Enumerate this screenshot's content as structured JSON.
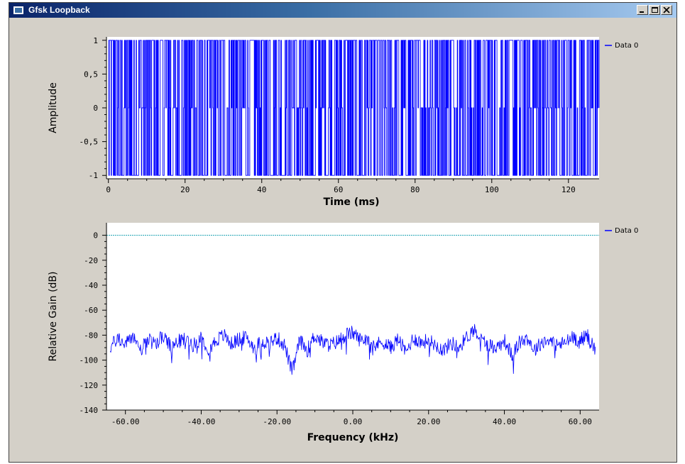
{
  "window": {
    "title": "Gfsk Loopback",
    "icon": "app-window-icon",
    "controls": [
      "minimize-icon",
      "maximize-icon",
      "close-icon"
    ]
  },
  "colors": {
    "trace": "#0000ff",
    "reference_line": "#1aa0b0",
    "plot_background": "#ffffff",
    "window_background": "#d4d0c8"
  },
  "chart_data": [
    {
      "type": "line",
      "style": "dense binary bit stream",
      "xlabel": "Time (ms)",
      "ylabel": "Amplitude",
      "xlim": [
        -0.5,
        128
      ],
      "ylim": [
        -1.05,
        1.05
      ],
      "xticks": [
        0,
        20,
        40,
        60,
        80,
        100,
        120
      ],
      "xtick_labels": [
        "0",
        "20",
        "40",
        "60",
        "80",
        "100",
        "120"
      ],
      "yticks": [
        -1,
        -0.5,
        0,
        0.5,
        1
      ],
      "ytick_labels": [
        "-1",
        "-0,5",
        "0",
        "0,5",
        "1"
      ],
      "legend": {
        "position": "top-right",
        "entries": [
          "Data 0"
        ]
      },
      "series": [
        {
          "name": "Data 0",
          "levels": [
            -1,
            0,
            1
          ],
          "x_range": [
            0,
            128
          ]
        }
      ]
    },
    {
      "type": "line",
      "xlabel": "Frequency (kHz)",
      "ylabel": "Relative Gain (dB)",
      "xlim": [
        -65,
        65
      ],
      "ylim": [
        -140,
        10
      ],
      "xticks": [
        -60,
        -40,
        -20,
        0,
        20,
        40,
        60
      ],
      "xtick_labels": [
        "-60.00",
        "-40.00",
        "-20.00",
        "0.00",
        "20.00",
        "40.00",
        "60.00"
      ],
      "yticks": [
        0,
        -20,
        -40,
        -60,
        -80,
        -100,
        -120,
        -140
      ],
      "ytick_labels": [
        "0",
        "-20",
        "-40",
        "-60",
        "-80",
        "-100",
        "-120",
        "-140"
      ],
      "legend": {
        "position": "top-right",
        "entries": [
          "Data 0"
        ]
      },
      "reference_line_db": 0,
      "series": [
        {
          "name": "Data 0",
          "x": [
            -64,
            -62,
            -60,
            -58,
            -56,
            -54,
            -52,
            -50,
            -48,
            -46,
            -44,
            -42,
            -40,
            -38,
            -36,
            -34,
            -32,
            -30,
            -28,
            -26,
            -24,
            -22,
            -20,
            -18,
            -16,
            -14,
            -12,
            -10,
            -8,
            -6,
            -4,
            -2,
            0,
            2,
            4,
            6,
            8,
            10,
            12,
            14,
            16,
            18,
            20,
            22,
            24,
            26,
            28,
            30,
            32,
            34,
            36,
            38,
            40,
            42,
            44,
            46,
            48,
            50,
            52,
            54,
            56,
            58,
            60,
            62,
            64
          ],
          "values": [
            -90,
            -82,
            -88,
            -80,
            -92,
            -84,
            -86,
            -81,
            -90,
            -85,
            -83,
            -88,
            -82,
            -91,
            -84,
            -80,
            -87,
            -83,
            -82,
            -90,
            -85,
            -86,
            -82,
            -88,
            -110,
            -84,
            -92,
            -80,
            -86,
            -88,
            -85,
            -80,
            -78,
            -84,
            -82,
            -88,
            -85,
            -90,
            -83,
            -94,
            -82,
            -86,
            -84,
            -88,
            -92,
            -86,
            -90,
            -82,
            -75,
            -84,
            -88,
            -90,
            -84,
            -96,
            -86,
            -82,
            -92,
            -85,
            -84,
            -88,
            -86,
            -82,
            -84,
            -80,
            -92
          ]
        }
      ]
    }
  ]
}
